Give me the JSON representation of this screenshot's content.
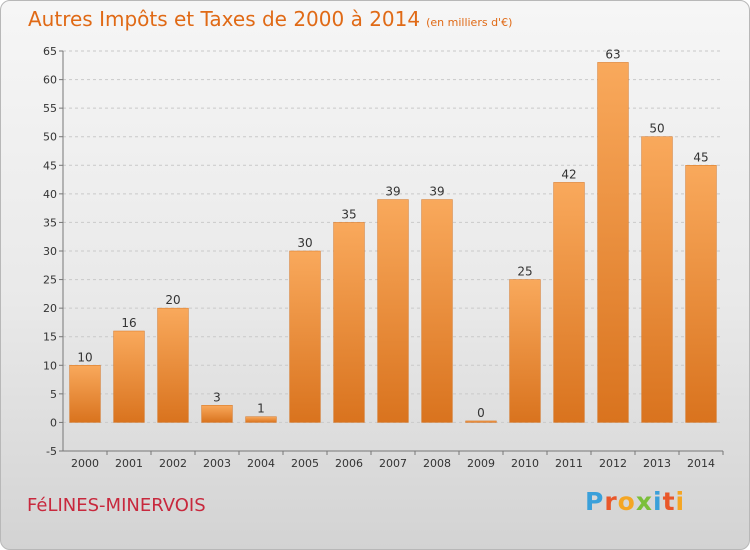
{
  "title": "Autres Impôts et Taxes de 2000 à 2014",
  "subtitle": "(en milliers d'€)",
  "location": "FéLINES-MINERVOIS",
  "logo": {
    "letters": [
      "P",
      "r",
      "o",
      "x",
      "i",
      "t",
      "i"
    ],
    "colors": [
      "#3aa0da",
      "#e9572a",
      "#f5a623",
      "#7bbf3a",
      "#3aa0da",
      "#e9572a",
      "#f5a623"
    ]
  },
  "colors": {
    "title": "#e06a16",
    "bar_top": "#f9a95c",
    "bar_bottom": "#d9731e",
    "location": "#c8283d"
  },
  "chart_data": {
    "type": "bar",
    "categories": [
      "2000",
      "2001",
      "2002",
      "2003",
      "2004",
      "2005",
      "2006",
      "2007",
      "2008",
      "2009",
      "2010",
      "2011",
      "2012",
      "2013",
      "2014"
    ],
    "values": [
      10,
      16,
      20,
      3,
      1,
      30,
      35,
      39,
      39,
      0,
      25,
      42,
      63,
      50,
      45
    ],
    "data_labels": [
      "10",
      "16",
      "20",
      "3",
      "1",
      "30",
      "35",
      "39",
      "39",
      "0",
      "25",
      "42",
      "63",
      "50",
      "45"
    ],
    "yticks": [
      -5,
      0,
      5,
      10,
      15,
      20,
      25,
      30,
      35,
      40,
      45,
      50,
      55,
      60,
      65
    ],
    "ylim": [
      -5,
      65
    ],
    "grid": "horizontal dashed",
    "xlabel": "",
    "ylabel": ""
  }
}
